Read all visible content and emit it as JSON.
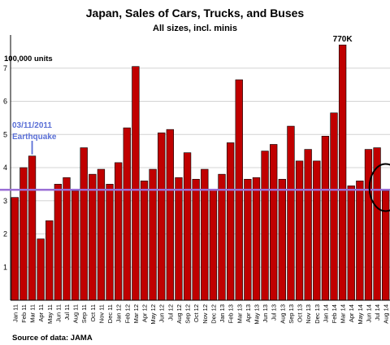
{
  "chart_data": {
    "type": "bar",
    "title": "Japan, Sales of Cars, Trucks, and Buses",
    "subtitle": "All sizes, incl. minis",
    "unit_label": "100,000 units",
    "source": "Source of data: JAMA",
    "ylim": [
      0,
      8
    ],
    "yticks": [
      1,
      2,
      3,
      4,
      5,
      6,
      7
    ],
    "grid": true,
    "bar_color": "#c00000",
    "reference_line": {
      "value": 3.33,
      "color": "#9b6fd6"
    },
    "annotations": {
      "earthquake_date": "03/11/2011",
      "earthquake_label": "Earthquake",
      "earthquake_color": "#5a6fd6",
      "peak_label": "770K",
      "circle_color": "#000000"
    },
    "categories": [
      "Jan 11",
      "Feb 11",
      "Mar 11",
      "Apr 11",
      "May 11",
      "Jun 11",
      "Jul 11",
      "Aug 11",
      "Sep 11",
      "Oct 11",
      "Nov 11",
      "Dec 11",
      "Jan 12",
      "Feb 12",
      "Mar 12",
      "Apr 12",
      "May 12",
      "Jun 12",
      "Jul 12",
      "Aug 12",
      "Sep 12",
      "Oct 12",
      "Nov 12",
      "Dec 12",
      "Jan 13",
      "Feb 13",
      "Mar 13",
      "Apr 13",
      "May 13",
      "Jun 13",
      "Jul 13",
      "Aug 13",
      "Sep 13",
      "Oct 13",
      "Nov 13",
      "Dec 13",
      "Jan 14",
      "Feb 14",
      "Mar 14",
      "Apr 14",
      "May 14",
      "Jun 14",
      "Jul 14",
      "Aug 14"
    ],
    "xtick_labels": [
      "Jan 11",
      "Feb 11",
      "Mar 11",
      "Apr 11",
      "May 11",
      "Jun 11",
      "Jul 11",
      "Aug 11",
      "Sep 11",
      "Oct 11",
      "Nov 11",
      "Dec 11",
      "Jan 12",
      "Feb 12",
      "Mar 12",
      "Apr 12",
      "May 12",
      "Jun 12",
      "Jul 12",
      "Aug 12",
      "Sep 12",
      "Oct 12",
      "Nov 12",
      "Dec 12",
      "Jan 13",
      "Feb 13",
      "Mar 13",
      "Apr 13",
      "May 13",
      "Jun 13",
      "Jul 13",
      "Aug 13",
      "Sep 13",
      "Oct 13",
      "Nov 13",
      "Dec 13",
      "Jan 14",
      "Feb 14",
      "Mar 14",
      "Apr 14",
      "May 14",
      "Jun 14",
      "Jul 14",
      "Aug 14"
    ],
    "values": [
      3.1,
      4.0,
      4.35,
      1.85,
      2.4,
      3.5,
      3.7,
      3.3,
      4.6,
      3.8,
      3.95,
      3.5,
      4.15,
      5.2,
      7.05,
      3.6,
      3.95,
      5.05,
      5.15,
      3.7,
      4.45,
      3.65,
      3.95,
      3.35,
      3.8,
      4.75,
      6.65,
      3.65,
      3.7,
      4.5,
      4.7,
      3.65,
      5.25,
      4.2,
      4.55,
      4.2,
      4.95,
      5.65,
      7.7,
      3.45,
      3.6,
      4.55,
      4.6,
      3.3
    ]
  }
}
